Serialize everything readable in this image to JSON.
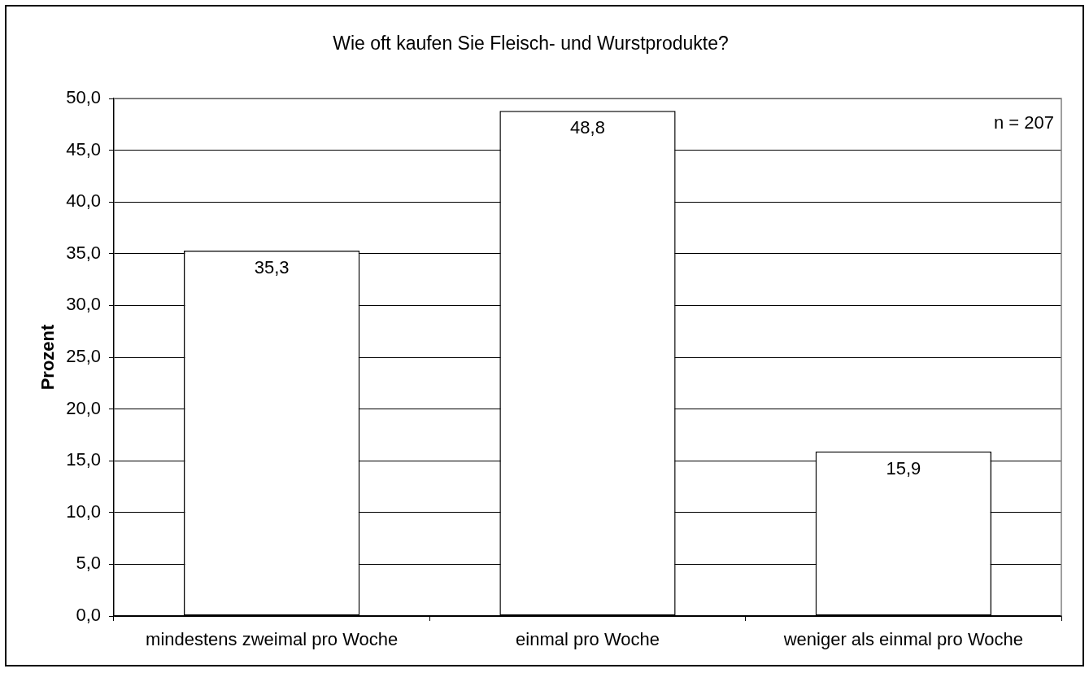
{
  "chart_data": {
    "type": "bar",
    "title": "Wie oft kaufen Sie Fleisch- und Wurstprodukte?",
    "ylabel": "Prozent",
    "categories": [
      "mindestens zweimal pro Woche",
      "einmal pro Woche",
      "weniger als einmal pro Woche"
    ],
    "values": [
      35.3,
      48.8,
      15.9
    ],
    "color": "#ffffff",
    "value_labels": [
      "35,3",
      "48,8",
      "15,9"
    ],
    "ylim": [
      0,
      50
    ],
    "yticks": [
      {
        "value": 0,
        "label": "0,0"
      },
      {
        "value": 5,
        "label": "5,0"
      },
      {
        "value": 10,
        "label": "10,0"
      },
      {
        "value": 15,
        "label": "15,0"
      },
      {
        "value": 20,
        "label": "20,0"
      },
      {
        "value": 25,
        "label": "25,0"
      },
      {
        "value": 30,
        "label": "30,0"
      },
      {
        "value": 35,
        "label": "35,0"
      },
      {
        "value": 40,
        "label": "40,0"
      },
      {
        "value": 45,
        "label": "45,0"
      },
      {
        "value": 50,
        "label": "50,0"
      }
    ],
    "grid": "y",
    "annotations": [
      "n = 207"
    ]
  }
}
